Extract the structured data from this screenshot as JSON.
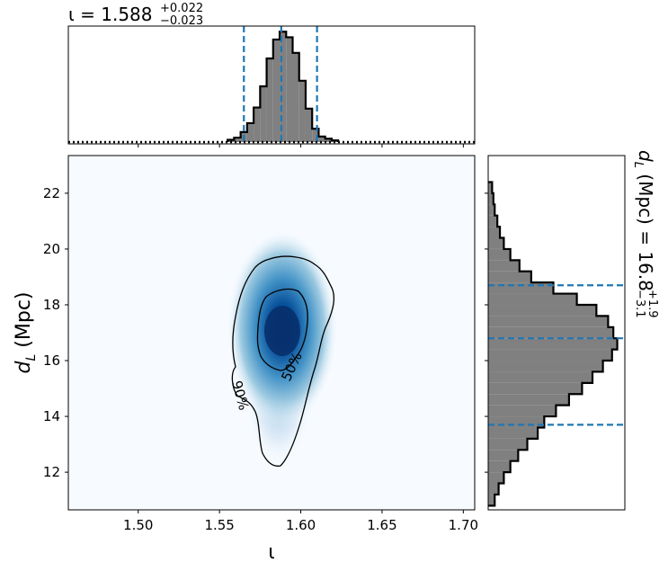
{
  "chart_data": {
    "type": "corner",
    "x_param": {
      "symbol": "ι",
      "xlabel": "ι",
      "xlim": [
        1.457,
        1.707
      ],
      "ticks": [
        "1.50",
        "1.55",
        "1.60",
        "1.65",
        "1.70"
      ],
      "tick_values": [
        1.5,
        1.55,
        1.6,
        1.65,
        1.7
      ],
      "title_prefix": "ι = ",
      "median": "1.588",
      "plus": "+0.022",
      "minus": "−0.023",
      "quantile_lines": [
        1.565,
        1.588,
        1.61
      ],
      "histogram": {
        "bin_edges": [
          1.555,
          1.559,
          1.563,
          1.567,
          1.571,
          1.575,
          1.579,
          1.583,
          1.587,
          1.591,
          1.595,
          1.599,
          1.603,
          1.607,
          1.611,
          1.615,
          1.619,
          1.623
        ],
        "counts": [
          0.02,
          0.04,
          0.09,
          0.17,
          0.31,
          0.5,
          0.75,
          0.92,
          0.99,
          0.94,
          0.8,
          0.55,
          0.3,
          0.12,
          0.05,
          0.03,
          0.015
        ]
      }
    },
    "y_param": {
      "symbol": "d_L (Mpc)",
      "ylabel_main": "d",
      "ylabel_sub": "L",
      "ylabel_rest": " (Mpc)",
      "ylim": [
        10.65,
        23.35
      ],
      "ticks": [
        "12",
        "14",
        "16",
        "18",
        "20",
        "22"
      ],
      "tick_values": [
        12,
        14,
        16,
        18,
        20,
        22
      ],
      "title_prefix_main": "d",
      "title_prefix_sub": "L",
      "title_prefix_rest": " (Mpc) = ",
      "median": "16.8",
      "plus": "+1.9",
      "minus": "−3.1",
      "quantile_lines": [
        13.7,
        16.8,
        18.7
      ],
      "histogram": {
        "bin_edges": [
          10.8,
          11.2,
          11.6,
          12.0,
          12.4,
          12.8,
          13.2,
          13.6,
          14.0,
          14.4,
          14.8,
          15.2,
          15.6,
          16.0,
          16.4,
          16.8,
          17.2,
          17.6,
          18.0,
          18.4,
          18.8,
          19.2,
          19.6,
          20.0,
          20.4,
          20.8,
          21.2,
          21.6,
          22.0,
          22.4
        ],
        "counts": [
          0.05,
          0.08,
          0.12,
          0.17,
          0.23,
          0.3,
          0.38,
          0.43,
          0.52,
          0.62,
          0.72,
          0.8,
          0.88,
          0.95,
          0.99,
          0.96,
          0.92,
          0.83,
          0.68,
          0.5,
          0.33,
          0.24,
          0.17,
          0.12,
          0.09,
          0.07,
          0.05,
          0.04,
          0.03
        ]
      }
    },
    "contours": {
      "levels": [
        "50%",
        "90%"
      ],
      "center": [
        1.588,
        17.0
      ]
    },
    "colors": {
      "hist_fill": "#808080",
      "hist_edge": "#000000",
      "quantile_line": "#1f77b4",
      "density_peak": "#08306b",
      "density_low": "#f7fbff"
    }
  }
}
